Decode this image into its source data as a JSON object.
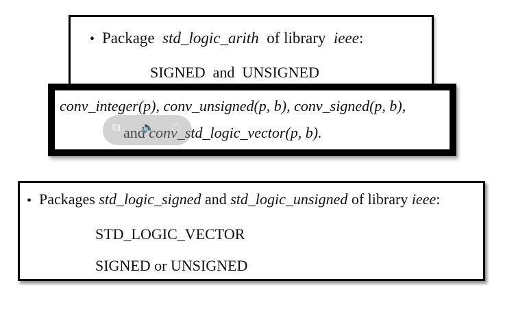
{
  "box1": {
    "bullet": "•",
    "prefix": "Package",
    "package_name": "std_logic_arith",
    "middle": "of library",
    "library": "ieee",
    "suffix": ":",
    "types_line": "SIGNED  and  UNSIGNED"
  },
  "box2": {
    "line1": "conv_integer(p), conv_unsigned(p, b), conv_signed(p, b),",
    "line2_and": "and",
    "line2_func": "conv_std_logic_vector(p, b)."
  },
  "box3": {
    "bullet": "•",
    "prefix": "Packages",
    "pkg1": "std_logic_signed",
    "and": "and",
    "pkg2": "std_logic_unsigned",
    "middle": "of library",
    "library": "ieee",
    "suffix": ":",
    "type1": "STD_LOGIC_VECTOR",
    "type2": "SIGNED or UNSIGNED"
  },
  "overlay": {
    "icons": [
      "pip-icon",
      "volume-icon",
      "settings-icon"
    ]
  }
}
